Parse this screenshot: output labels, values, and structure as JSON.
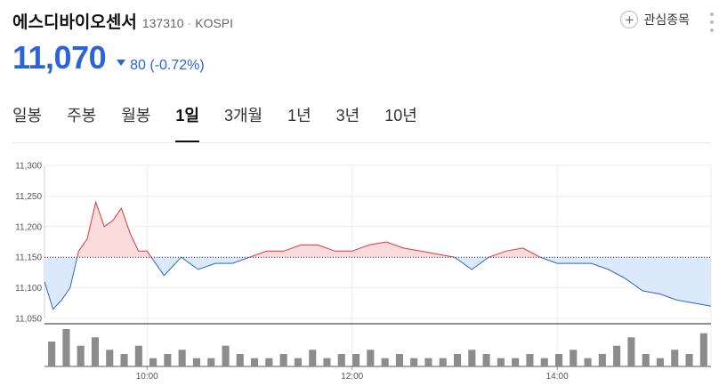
{
  "stock": {
    "name": "에스디바이오센서",
    "code": "137310",
    "separator": "·",
    "market": "KOSPI",
    "price": "11,070",
    "change": "80 (-0.72%)",
    "direction": "down"
  },
  "watchlist": {
    "label": "관심종목",
    "icon": "plus-icon"
  },
  "more_icon": "kebab-icon",
  "tabs": [
    {
      "label": "일봉",
      "active": false
    },
    {
      "label": "주봉",
      "active": false
    },
    {
      "label": "월봉",
      "active": false
    },
    {
      "label": "1일",
      "active": true
    },
    {
      "label": "3개월",
      "active": false
    },
    {
      "label": "1년",
      "active": false
    },
    {
      "label": "3년",
      "active": false
    },
    {
      "label": "10년",
      "active": false
    }
  ],
  "colors": {
    "up": "#e0353b",
    "down": "#2a64d8",
    "up_fill": "#fbdcdc",
    "down_fill": "#dbe9fb",
    "volume": "#8c8c8c"
  },
  "chart_data": {
    "type": "line",
    "title": "",
    "reference": 11150,
    "ylim": [
      11050,
      11300
    ],
    "y_ticks": [
      "11,300",
      "11,250",
      "11,200",
      "11,150",
      "11,100",
      "11,050"
    ],
    "x_ticks": [
      "10:00",
      "12:00",
      "14:00"
    ],
    "x_range": [
      "09:00",
      "15:30"
    ],
    "grid": true,
    "series": [
      {
        "name": "",
        "x": [
          "09:00",
          "09:05",
          "09:10",
          "09:15",
          "09:20",
          "09:25",
          "09:30",
          "09:35",
          "09:40",
          "09:45",
          "09:50",
          "09:55",
          "10:00",
          "10:10",
          "10:20",
          "10:30",
          "10:40",
          "10:50",
          "11:00",
          "11:10",
          "11:20",
          "11:30",
          "11:40",
          "11:50",
          "12:00",
          "12:10",
          "12:20",
          "12:30",
          "12:40",
          "12:50",
          "13:00",
          "13:10",
          "13:20",
          "13:30",
          "13:40",
          "13:50",
          "14:00",
          "14:10",
          "14:20",
          "14:30",
          "14:40",
          "14:50",
          "15:00",
          "15:10",
          "15:20",
          "15:30"
        ],
        "values": [
          11110,
          11065,
          11080,
          11100,
          11160,
          11180,
          11240,
          11200,
          11210,
          11230,
          11190,
          11160,
          11160,
          11120,
          11150,
          11130,
          11140,
          11140,
          11150,
          11160,
          11160,
          11170,
          11170,
          11160,
          11160,
          11170,
          11175,
          11165,
          11160,
          11155,
          11150,
          11130,
          11150,
          11160,
          11165,
          11150,
          11140,
          11140,
          11140,
          11130,
          11115,
          11095,
          11090,
          11080,
          11075,
          11070
        ]
      }
    ],
    "volume": [
      6,
      9,
      5,
      7,
      4,
      3,
      5,
      2,
      3,
      4,
      2,
      2,
      5,
      3,
      2,
      2,
      3,
      2,
      4,
      2,
      3,
      3,
      4,
      2,
      3,
      2,
      2,
      2,
      3,
      4,
      3,
      2,
      2,
      3,
      2,
      3,
      4,
      2,
      3,
      5,
      7,
      3,
      2,
      4,
      3,
      8
    ]
  }
}
